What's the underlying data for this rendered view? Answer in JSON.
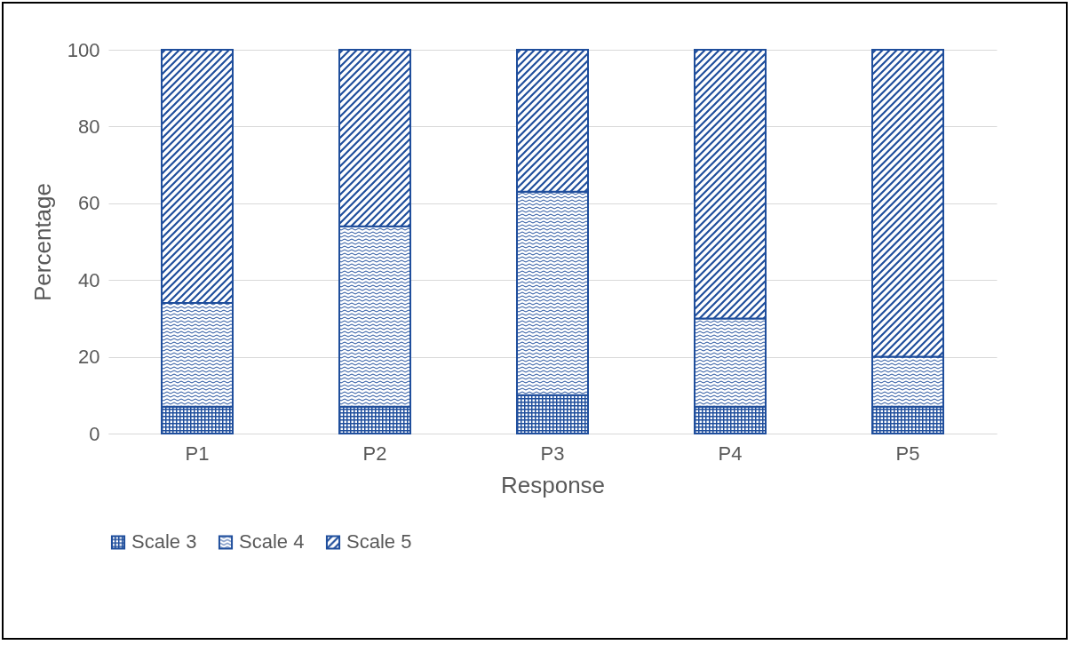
{
  "chart_data": {
    "type": "bar",
    "stacked": true,
    "xlabel": "Response",
    "ylabel": "Percentage",
    "categories": [
      "P1",
      "P2",
      "P3",
      "P4",
      "P5"
    ],
    "series": [
      {
        "name": "Scale 3",
        "color": "#1f4e9c",
        "values": [
          7,
          7,
          10,
          7,
          7
        ]
      },
      {
        "name": "Scale 4",
        "color": "#1f4e9c",
        "values": [
          27,
          47,
          53,
          23,
          13
        ]
      },
      {
        "name": "Scale 5",
        "color": "#1f4e9c",
        "values": [
          66,
          46,
          37,
          70,
          80
        ]
      }
    ],
    "ylim": [
      0,
      100
    ],
    "yticks": [
      0,
      20,
      40,
      60,
      80,
      100
    ],
    "grid": "y",
    "legend": "bottom"
  }
}
